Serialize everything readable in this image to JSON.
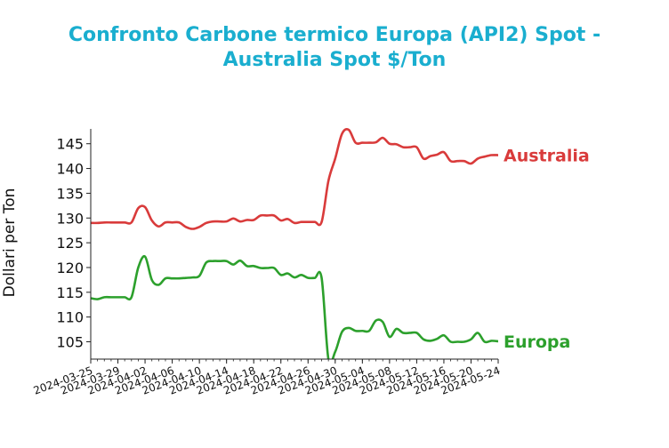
{
  "chart_data": {
    "type": "line",
    "title_line1": "Confronto Carbone termico Europa (API2) Spot -",
    "title_line2": "Australia Spot $/Ton",
    "ylabel": "Dollari per Ton",
    "xlabel": "",
    "ylim": [
      101.5,
      148
    ],
    "yticks": [
      105,
      110,
      115,
      120,
      125,
      130,
      135,
      140,
      145
    ],
    "xlim": [
      "2024-03-25",
      "2024-05-24"
    ],
    "xticks": [
      "2024-03-25",
      "2024-03-29",
      "2024-04-02",
      "2024-04-06",
      "2024-04-10",
      "2024-04-14",
      "2024-04-18",
      "2024-04-22",
      "2024-04-26",
      "2024-04-30",
      "2024-05-04",
      "2024-05-08",
      "2024-05-12",
      "2024-05-16",
      "2024-05-20",
      "2024-05-24"
    ],
    "grid": false,
    "series": [
      {
        "name": "Australia",
        "color": "#d93b3b",
        "points": [
          [
            "2024-03-25",
            129.0
          ],
          [
            "2024-03-26",
            129.0
          ],
          [
            "2024-03-27",
            129.1
          ],
          [
            "2024-03-28",
            129.1
          ],
          [
            "2024-03-29",
            129.1
          ],
          [
            "2024-03-30",
            129.1
          ],
          [
            "2024-03-31",
            129.1
          ],
          [
            "2024-04-01",
            132.0
          ],
          [
            "2024-04-02",
            132.2
          ],
          [
            "2024-04-03",
            129.5
          ],
          [
            "2024-04-04",
            128.3
          ],
          [
            "2024-04-05",
            129.1
          ],
          [
            "2024-04-06",
            129.1
          ],
          [
            "2024-04-07",
            129.1
          ],
          [
            "2024-04-08",
            128.2
          ],
          [
            "2024-04-09",
            127.8
          ],
          [
            "2024-04-10",
            128.2
          ],
          [
            "2024-04-11",
            129.0
          ],
          [
            "2024-04-12",
            129.3
          ],
          [
            "2024-04-13",
            129.3
          ],
          [
            "2024-04-14",
            129.3
          ],
          [
            "2024-04-15",
            129.9
          ],
          [
            "2024-04-16",
            129.3
          ],
          [
            "2024-04-17",
            129.6
          ],
          [
            "2024-04-18",
            129.6
          ],
          [
            "2024-04-19",
            130.5
          ],
          [
            "2024-04-20",
            130.5
          ],
          [
            "2024-04-21",
            130.5
          ],
          [
            "2024-04-22",
            129.5
          ],
          [
            "2024-04-23",
            129.8
          ],
          [
            "2024-04-24",
            129.0
          ],
          [
            "2024-04-25",
            129.2
          ],
          [
            "2024-04-26",
            129.2
          ],
          [
            "2024-04-27",
            129.2
          ],
          [
            "2024-04-28",
            129.2
          ],
          [
            "2024-04-29",
            137.5
          ],
          [
            "2024-04-30",
            142.0
          ],
          [
            "2024-05-01",
            147.0
          ],
          [
            "2024-05-02",
            147.8
          ],
          [
            "2024-05-03",
            145.2
          ],
          [
            "2024-05-04",
            145.2
          ],
          [
            "2024-05-05",
            145.2
          ],
          [
            "2024-05-06",
            145.3
          ],
          [
            "2024-05-07",
            146.2
          ],
          [
            "2024-05-08",
            145.0
          ],
          [
            "2024-05-09",
            144.9
          ],
          [
            "2024-05-10",
            144.3
          ],
          [
            "2024-05-11",
            144.3
          ],
          [
            "2024-05-12",
            144.3
          ],
          [
            "2024-05-13",
            142.0
          ],
          [
            "2024-05-14",
            142.5
          ],
          [
            "2024-05-15",
            142.8
          ],
          [
            "2024-05-16",
            143.3
          ],
          [
            "2024-05-17",
            141.5
          ],
          [
            "2024-05-18",
            141.5
          ],
          [
            "2024-05-19",
            141.5
          ],
          [
            "2024-05-20",
            141.0
          ],
          [
            "2024-05-21",
            142.0
          ],
          [
            "2024-05-22",
            142.4
          ],
          [
            "2024-05-23",
            142.7
          ],
          [
            "2024-05-24",
            142.7
          ]
        ]
      },
      {
        "name": "Europa",
        "color": "#2ca02c",
        "points": [
          [
            "2024-03-25",
            113.8
          ],
          [
            "2024-03-26",
            113.6
          ],
          [
            "2024-03-27",
            114.0
          ],
          [
            "2024-03-28",
            114.0
          ],
          [
            "2024-03-29",
            114.0
          ],
          [
            "2024-03-30",
            114.0
          ],
          [
            "2024-03-31",
            114.0
          ],
          [
            "2024-04-01",
            120.0
          ],
          [
            "2024-04-02",
            122.2
          ],
          [
            "2024-04-03",
            117.5
          ],
          [
            "2024-04-04",
            116.5
          ],
          [
            "2024-04-05",
            117.8
          ],
          [
            "2024-04-06",
            117.8
          ],
          [
            "2024-04-07",
            117.8
          ],
          [
            "2024-04-08",
            117.9
          ],
          [
            "2024-04-09",
            118.0
          ],
          [
            "2024-04-10",
            118.3
          ],
          [
            "2024-04-11",
            121.0
          ],
          [
            "2024-04-12",
            121.3
          ],
          [
            "2024-04-13",
            121.3
          ],
          [
            "2024-04-14",
            121.3
          ],
          [
            "2024-04-15",
            120.6
          ],
          [
            "2024-04-16",
            121.4
          ],
          [
            "2024-04-17",
            120.3
          ],
          [
            "2024-04-18",
            120.3
          ],
          [
            "2024-04-19",
            119.9
          ],
          [
            "2024-04-20",
            119.9
          ],
          [
            "2024-04-21",
            119.9
          ],
          [
            "2024-04-22",
            118.5
          ],
          [
            "2024-04-23",
            118.8
          ],
          [
            "2024-04-24",
            118.0
          ],
          [
            "2024-04-25",
            118.5
          ],
          [
            "2024-04-26",
            117.9
          ],
          [
            "2024-04-27",
            117.9
          ],
          [
            "2024-04-28",
            117.9
          ],
          [
            "2024-04-29",
            101.5
          ],
          [
            "2024-04-30",
            103.0
          ],
          [
            "2024-05-01",
            107.0
          ],
          [
            "2024-05-02",
            107.8
          ],
          [
            "2024-05-03",
            107.2
          ],
          [
            "2024-05-04",
            107.2
          ],
          [
            "2024-05-05",
            107.2
          ],
          [
            "2024-05-06",
            109.3
          ],
          [
            "2024-05-07",
            109.0
          ],
          [
            "2024-05-08",
            106.0
          ],
          [
            "2024-05-09",
            107.6
          ],
          [
            "2024-05-10",
            106.8
          ],
          [
            "2024-05-11",
            106.8
          ],
          [
            "2024-05-12",
            106.8
          ],
          [
            "2024-05-13",
            105.5
          ],
          [
            "2024-05-14",
            105.2
          ],
          [
            "2024-05-15",
            105.6
          ],
          [
            "2024-05-16",
            106.3
          ],
          [
            "2024-05-17",
            105.0
          ],
          [
            "2024-05-18",
            105.0
          ],
          [
            "2024-05-19",
            105.0
          ],
          [
            "2024-05-20",
            105.5
          ],
          [
            "2024-05-21",
            106.8
          ],
          [
            "2024-05-22",
            105.0
          ],
          [
            "2024-05-23",
            105.2
          ],
          [
            "2024-05-24",
            105.1
          ]
        ]
      }
    ]
  }
}
